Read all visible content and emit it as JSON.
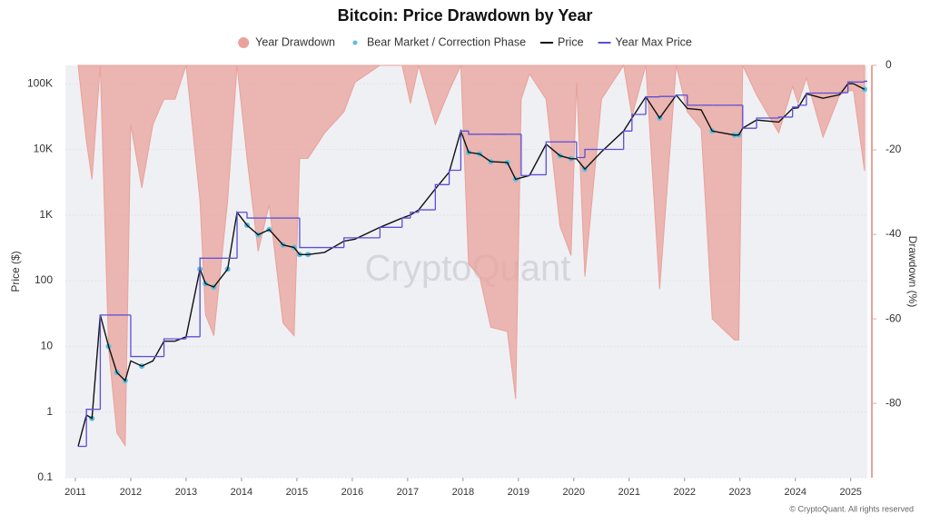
{
  "chart_data": {
    "type": "line",
    "title": "Bitcoin: Price Drawdown by Year",
    "ylabel": "Price ($)",
    "y2label": "Drawdown (%)",
    "watermark": "CryptoQuant",
    "footer": "© CryptoQuant. All rights reserved",
    "log_y": true,
    "legend": "top",
    "x": [
      2011.05,
      2011.2,
      2011.3,
      2011.45,
      2011.6,
      2011.75,
      2011.9,
      2012.0,
      2012.2,
      2012.4,
      2012.6,
      2012.8,
      2013.0,
      2013.25,
      2013.35,
      2013.5,
      2013.75,
      2013.92,
      2014.1,
      2014.3,
      2014.5,
      2014.75,
      2014.95,
      2015.05,
      2015.2,
      2015.5,
      2015.85,
      2016.05,
      2016.5,
      2016.9,
      2017.05,
      2017.2,
      2017.5,
      2017.75,
      2017.96,
      2018.1,
      2018.3,
      2018.5,
      2018.8,
      2018.95,
      2019.05,
      2019.2,
      2019.5,
      2019.75,
      2019.95,
      2020.05,
      2020.2,
      2020.5,
      2020.9,
      2021.05,
      2021.3,
      2021.55,
      2021.85,
      2022.05,
      2022.3,
      2022.5,
      2022.9,
      2022.98,
      2023.05,
      2023.3,
      2023.7,
      2023.95,
      2024.05,
      2024.2,
      2024.5,
      2024.8,
      2024.95,
      2025.05,
      2025.25
    ],
    "xlim": [
      2010.82,
      2025.3
    ],
    "xticks": [
      2011,
      2012,
      2013,
      2014,
      2015,
      2016,
      2017,
      2018,
      2019,
      2020,
      2021,
      2022,
      2023,
      2024,
      2025
    ],
    "ylim": [
      0.1,
      190000
    ],
    "yticks": [
      0.1,
      1,
      10,
      100,
      {
        "value": 1000,
        "label": "1K"
      },
      {
        "value": 10000,
        "label": "10K"
      },
      {
        "value": 100000,
        "label": "100K"
      }
    ],
    "y2lim": [
      -97.6,
      0
    ],
    "y2ticks": [
      -80,
      -60,
      -40,
      -20,
      0
    ],
    "series": [
      {
        "name": "Year Drawdown",
        "type": "area",
        "axis": "y2",
        "color": "#e9a29b",
        "values": [
          0,
          -18,
          -27,
          0,
          -67,
          -87,
          -90,
          -14,
          -29,
          -14,
          -8,
          -8,
          0,
          -32,
          -59,
          -64,
          -32,
          0,
          -22,
          -44,
          -33,
          -61,
          -64,
          -22,
          -22,
          -16,
          -11,
          -4,
          0,
          0,
          -9,
          0,
          -14,
          -6,
          0,
          -47,
          -50,
          -62,
          -63,
          -79,
          -8,
          -2,
          -8,
          -38,
          -45,
          -4,
          -50,
          -8,
          0,
          -12,
          0,
          -53,
          0,
          -11,
          -15,
          -60,
          -65,
          -65,
          0,
          -7,
          -16,
          -5,
          -9,
          -3,
          -17,
          -7,
          -6,
          -6,
          -25
        ]
      },
      {
        "name": "Bear Market / Correction Phase",
        "type": "scatter",
        "color": "#5bc0de",
        "values": [
          null,
          null,
          0.8,
          null,
          10,
          4,
          3,
          null,
          5,
          null,
          null,
          null,
          null,
          150,
          90,
          80,
          150,
          null,
          700,
          500,
          600,
          350,
          320,
          250,
          250,
          null,
          null,
          null,
          null,
          null,
          null,
          null,
          null,
          null,
          null,
          9000,
          8500,
          6500,
          6300,
          3500,
          null,
          null,
          null,
          8000,
          7200,
          null,
          5000,
          null,
          null,
          null,
          null,
          30000,
          null,
          null,
          null,
          19000,
          16500,
          16600,
          null,
          null,
          null,
          null,
          null,
          null,
          null,
          null,
          null,
          null,
          82000
        ]
      },
      {
        "name": "Price",
        "type": "line",
        "color": "#111111",
        "values": [
          0.3,
          0.9,
          0.8,
          30,
          10,
          4,
          3,
          6,
          5,
          6,
          12,
          12,
          14,
          150,
          90,
          80,
          150,
          1100,
          700,
          500,
          600,
          350,
          320,
          250,
          250,
          270,
          400,
          430,
          650,
          900,
          1000,
          1200,
          2500,
          4500,
          19000,
          9000,
          8500,
          6500,
          6300,
          3500,
          3700,
          4000,
          12000,
          8000,
          7200,
          7200,
          5000,
          9200,
          19000,
          30000,
          63000,
          30000,
          67000,
          42000,
          40000,
          19000,
          16500,
          16600,
          21000,
          28000,
          26000,
          42000,
          43000,
          70000,
          60000,
          68000,
          100000,
          100000,
          82000
        ]
      },
      {
        "name": "Year Max Price",
        "type": "step",
        "color": "#5b4fd6",
        "values": [
          0.3,
          1.1,
          1.1,
          30,
          30,
          30,
          30,
          7,
          7,
          7,
          13,
          13,
          14,
          220,
          220,
          220,
          220,
          1100,
          900,
          900,
          900,
          900,
          900,
          320,
          320,
          320,
          450,
          450,
          650,
          900,
          1100,
          1200,
          2900,
          4800,
          19000,
          17000,
          17000,
          17000,
          17000,
          17000,
          4000,
          4100,
          13000,
          13000,
          13000,
          7500,
          10000,
          10000,
          19000,
          34000,
          63000,
          64000,
          67000,
          47000,
          47000,
          47000,
          47000,
          47000,
          21000,
          30000,
          31000,
          44000,
          47000,
          72000,
          72000,
          73000,
          106000,
          106000,
          109000
        ]
      }
    ]
  }
}
